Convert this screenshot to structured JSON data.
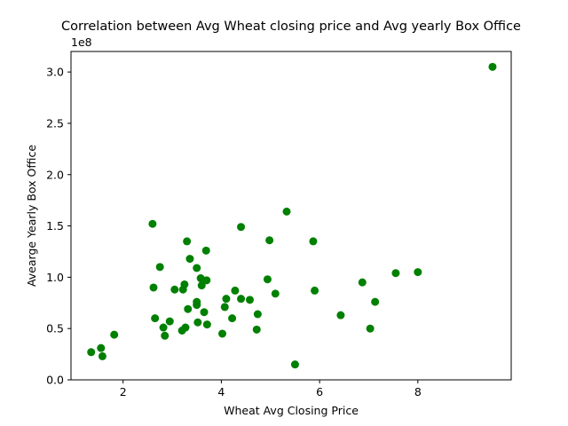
{
  "chart_data": {
    "type": "scatter",
    "title": "Correlation between Avg Wheat closing price and Avg yearly Box Office",
    "xlabel": "Wheat Avg Closing Price",
    "ylabel": "Avearge Yearly Box Office",
    "y_offset_label": "1e8",
    "xlim": [
      0.94,
      9.9
    ],
    "ylim": [
      0,
      3.2
    ],
    "x_ticks": [
      2,
      4,
      6,
      8
    ],
    "x_tick_labels": [
      "2",
      "4",
      "6",
      "8"
    ],
    "y_ticks": [
      0,
      0.5,
      1.0,
      1.5,
      2.0,
      2.5,
      3.0
    ],
    "y_tick_labels": [
      "0.0",
      "0.5",
      "1.0",
      "1.5",
      "2.0",
      "2.5",
      "3.0"
    ],
    "y_scale_note": "values in units of 1e8",
    "marker_color": "#008000",
    "grid": false,
    "series": [
      {
        "points": [
          [
            1.35,
            0.27
          ],
          [
            1.55,
            0.31
          ],
          [
            1.58,
            0.23
          ],
          [
            1.82,
            0.44
          ],
          [
            2.6,
            1.52
          ],
          [
            2.62,
            0.9
          ],
          [
            2.65,
            0.6
          ],
          [
            2.75,
            1.1
          ],
          [
            2.82,
            0.51
          ],
          [
            2.85,
            0.43
          ],
          [
            2.95,
            0.57
          ],
          [
            3.05,
            0.88
          ],
          [
            3.2,
            0.48
          ],
          [
            3.22,
            0.88
          ],
          [
            3.25,
            0.93
          ],
          [
            3.27,
            0.51
          ],
          [
            3.3,
            1.35
          ],
          [
            3.32,
            0.69
          ],
          [
            3.36,
            1.18
          ],
          [
            3.5,
            1.09
          ],
          [
            3.5,
            0.76
          ],
          [
            3.5,
            0.73
          ],
          [
            3.52,
            0.56
          ],
          [
            3.58,
            0.99
          ],
          [
            3.6,
            0.92
          ],
          [
            3.65,
            0.66
          ],
          [
            3.69,
            1.26
          ],
          [
            3.7,
            0.97
          ],
          [
            3.71,
            0.54
          ],
          [
            4.02,
            0.45
          ],
          [
            4.07,
            0.71
          ],
          [
            4.1,
            0.79
          ],
          [
            4.22,
            0.6
          ],
          [
            4.28,
            0.87
          ],
          [
            4.4,
            1.49
          ],
          [
            4.4,
            0.79
          ],
          [
            4.58,
            0.78
          ],
          [
            4.72,
            0.49
          ],
          [
            4.74,
            0.64
          ],
          [
            4.94,
            0.98
          ],
          [
            4.98,
            1.36
          ],
          [
            5.1,
            0.84
          ],
          [
            5.33,
            1.64
          ],
          [
            5.5,
            0.15
          ],
          [
            5.87,
            1.35
          ],
          [
            5.9,
            0.87
          ],
          [
            6.43,
            0.63
          ],
          [
            6.87,
            0.95
          ],
          [
            7.03,
            0.5
          ],
          [
            7.13,
            0.76
          ],
          [
            7.55,
            1.04
          ],
          [
            8.0,
            1.05
          ],
          [
            9.52,
            3.05
          ]
        ]
      }
    ]
  }
}
